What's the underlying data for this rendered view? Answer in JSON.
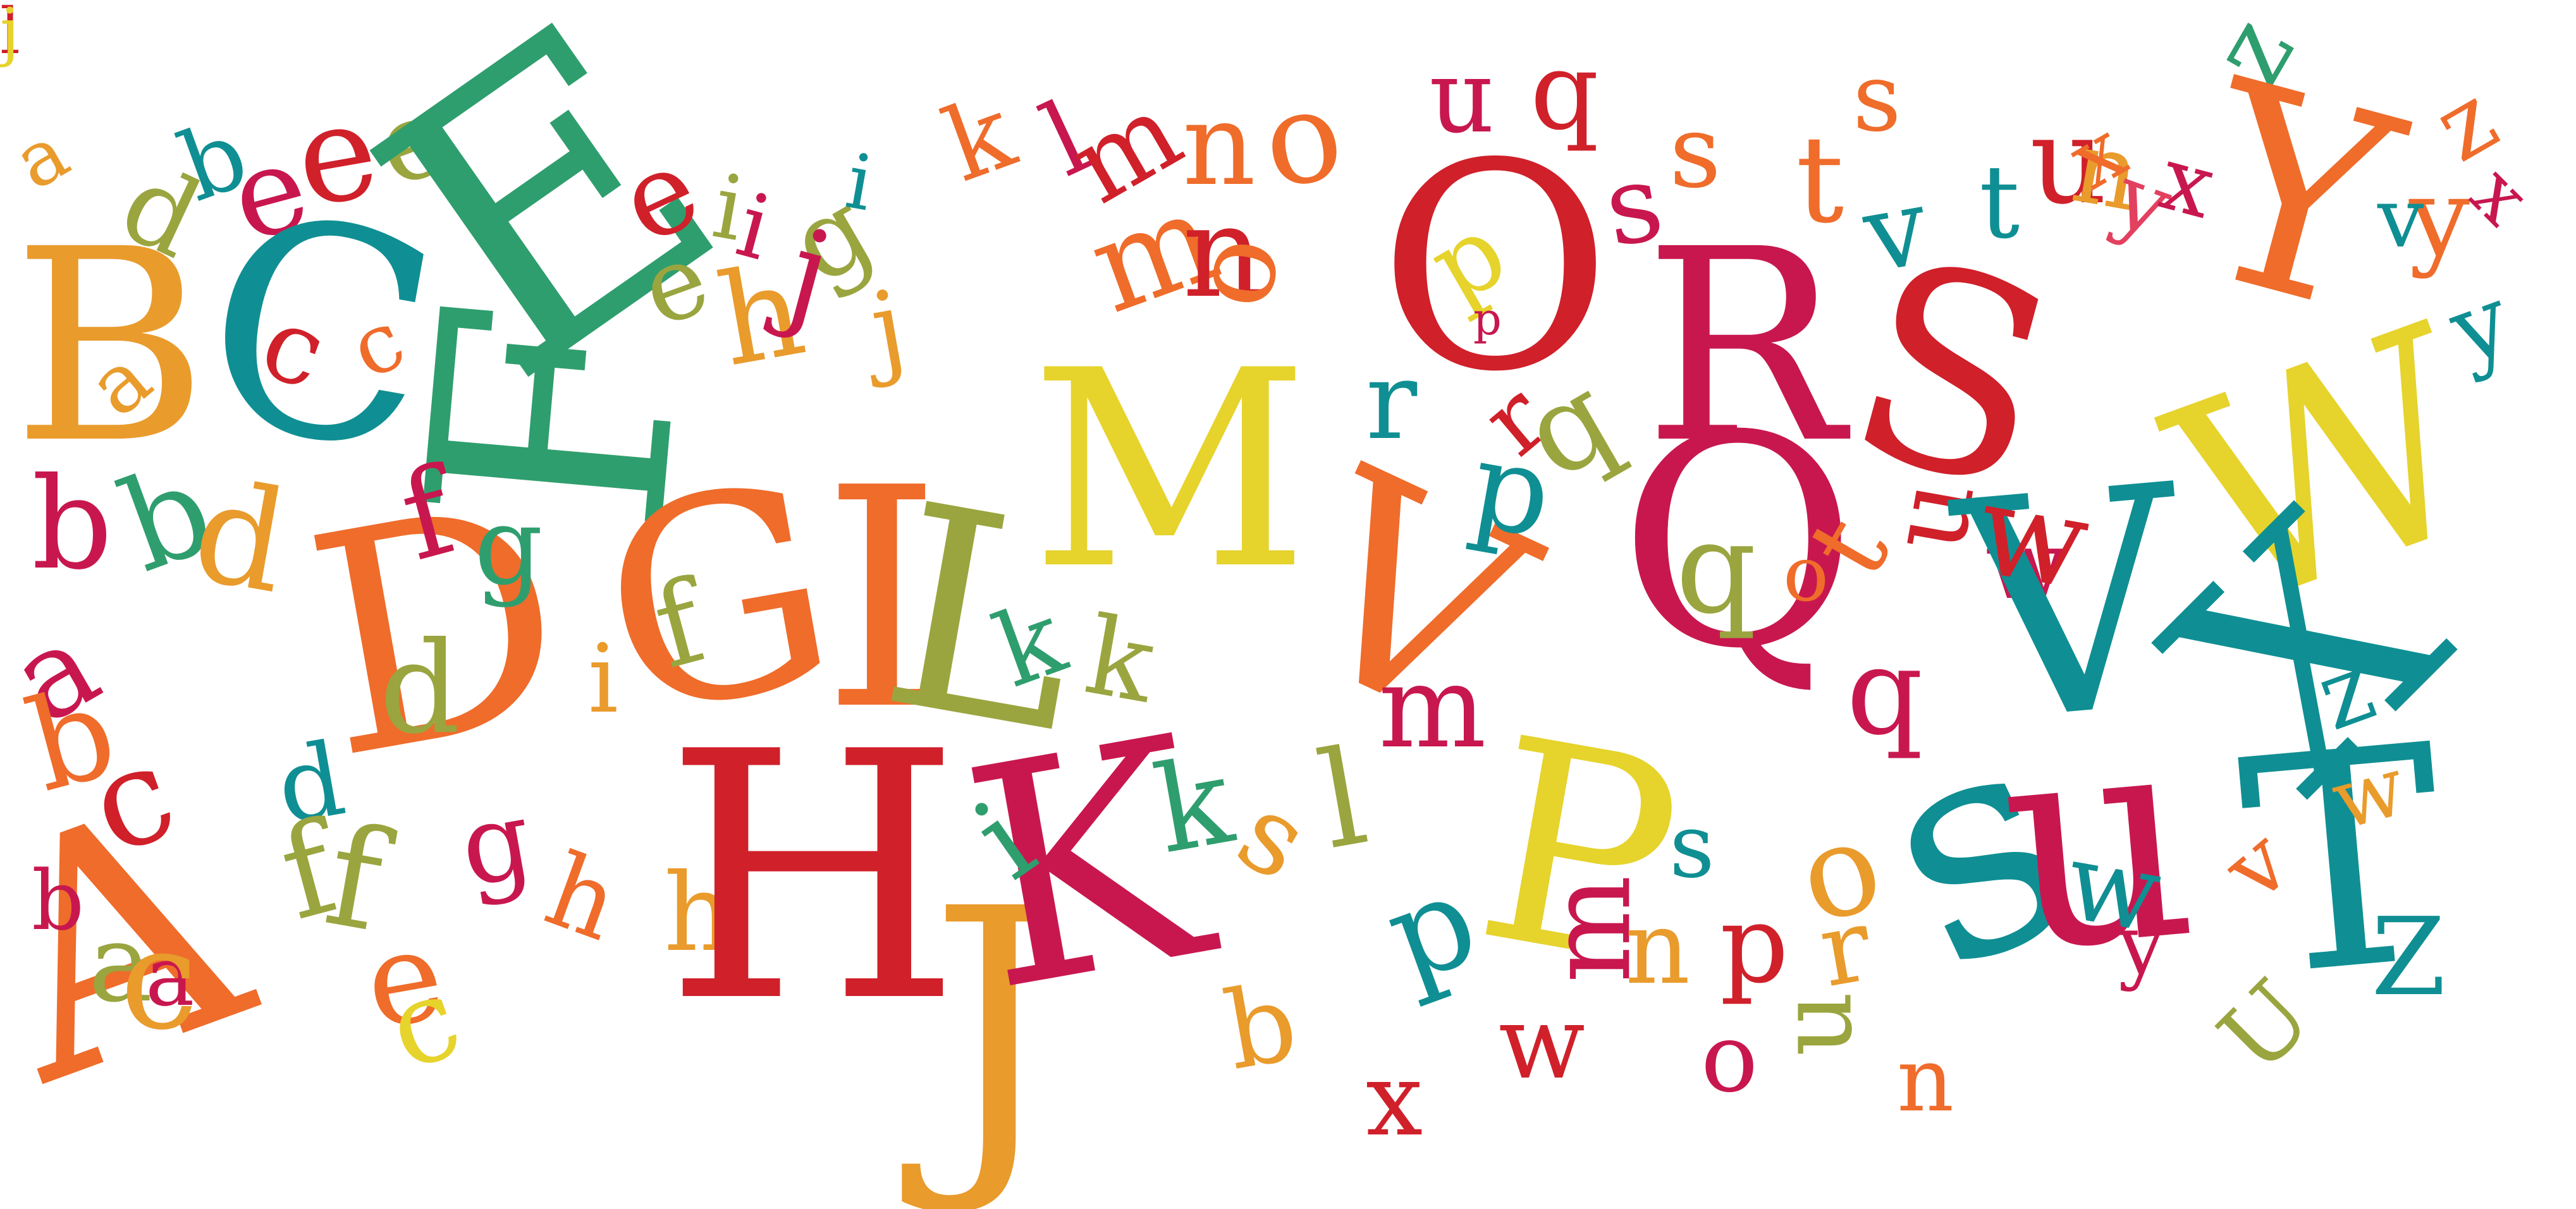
{
  "palette": {
    "red": "#d0202a",
    "crimson": "#c8174f",
    "orange": "#ef6c2b",
    "amber": "#e99b2c",
    "yellow": "#e6d32c",
    "olive": "#9aa53f",
    "green": "#2f9e6e",
    "teal": "#0f8f93",
    "pink": "#e3405f"
  },
  "letters": [
    {
      "ch": "a",
      "c": "amber"
    },
    {
      "ch": "b",
      "c": "teal"
    },
    {
      "ch": "d",
      "c": "olive"
    },
    {
      "ch": "e",
      "c": "crimson"
    },
    {
      "ch": "e",
      "c": "red"
    },
    {
      "ch": "e",
      "c": "olive"
    },
    {
      "ch": "E",
      "c": "green"
    },
    {
      "ch": "B",
      "c": "amber"
    },
    {
      "ch": "C",
      "c": "teal"
    },
    {
      "ch": "a",
      "c": "amber"
    },
    {
      "ch": "c",
      "c": "red"
    },
    {
      "ch": "c",
      "c": "orange"
    },
    {
      "ch": "F",
      "c": "green"
    },
    {
      "ch": "e",
      "c": "red"
    },
    {
      "ch": "i",
      "c": "olive"
    },
    {
      "ch": "e",
      "c": "olive"
    },
    {
      "ch": "i",
      "c": "crimson"
    },
    {
      "ch": "g",
      "c": "olive"
    },
    {
      "ch": "h",
      "c": "amber"
    },
    {
      "ch": "j",
      "c": "crimson"
    },
    {
      "ch": "j",
      "c": "amber"
    },
    {
      "ch": "i",
      "c": "teal"
    },
    {
      "ch": "k",
      "c": "orange"
    },
    {
      "ch": "l",
      "c": "crimson"
    },
    {
      "ch": "m",
      "c": "red"
    },
    {
      "ch": "n",
      "c": "orange"
    },
    {
      "ch": "o",
      "c": "orange"
    },
    {
      "ch": "n",
      "c": "crimson"
    },
    {
      "ch": "q",
      "c": "red"
    },
    {
      "ch": "m",
      "c": "orange"
    },
    {
      "ch": "n",
      "c": "red"
    },
    {
      "ch": "o",
      "c": "orange"
    },
    {
      "ch": "O",
      "c": "red"
    },
    {
      "ch": "p",
      "c": "yellow"
    },
    {
      "ch": "p",
      "c": "crimson"
    },
    {
      "ch": "s",
      "c": "orange"
    },
    {
      "ch": "s",
      "c": "crimson"
    },
    {
      "ch": "t",
      "c": "orange"
    },
    {
      "ch": "s",
      "c": "orange"
    },
    {
      "ch": "R",
      "c": "crimson"
    },
    {
      "ch": "S",
      "c": "red"
    },
    {
      "ch": "v",
      "c": "teal"
    },
    {
      "ch": "t",
      "c": "teal"
    },
    {
      "ch": "u",
      "c": "red"
    },
    {
      "ch": "n",
      "c": "amber"
    },
    {
      "ch": "x",
      "c": "orange"
    },
    {
      "ch": "y",
      "c": "pink"
    },
    {
      "ch": "x",
      "c": "crimson"
    },
    {
      "ch": "z",
      "c": "green"
    },
    {
      "ch": "Y",
      "c": "orange"
    },
    {
      "ch": "z",
      "c": "orange"
    },
    {
      "ch": "y",
      "c": "orange"
    },
    {
      "ch": "x",
      "c": "crimson"
    },
    {
      "ch": "y",
      "c": "teal"
    },
    {
      "ch": "W",
      "c": "yellow"
    },
    {
      "ch": "v",
      "c": "teal"
    },
    {
      "ch": "b",
      "c": "crimson"
    },
    {
      "ch": "b",
      "c": "green"
    },
    {
      "ch": "d",
      "c": "amber"
    },
    {
      "ch": "D",
      "c": "orange"
    },
    {
      "ch": "d",
      "c": "olive"
    },
    {
      "ch": "f",
      "c": "crimson"
    },
    {
      "ch": "g",
      "c": "green"
    },
    {
      "ch": "i",
      "c": "amber"
    },
    {
      "ch": "G",
      "c": "orange"
    },
    {
      "ch": "f",
      "c": "olive"
    },
    {
      "ch": "I",
      "c": "orange"
    },
    {
      "ch": "L",
      "c": "olive"
    },
    {
      "ch": "M",
      "c": "yellow"
    },
    {
      "ch": "k",
      "c": "green"
    },
    {
      "ch": "k",
      "c": "olive"
    },
    {
      "ch": "V",
      "c": "orange"
    },
    {
      "ch": "r",
      "c": "red"
    },
    {
      "ch": "q",
      "c": "olive"
    },
    {
      "ch": "r",
      "c": "teal"
    },
    {
      "ch": "p",
      "c": "teal"
    },
    {
      "ch": "Q",
      "c": "crimson"
    },
    {
      "ch": "q",
      "c": "olive"
    },
    {
      "ch": "o",
      "c": "orange"
    },
    {
      "ch": "t",
      "c": "orange"
    },
    {
      "ch": "u",
      "c": "red"
    },
    {
      "ch": "q",
      "c": "crimson"
    },
    {
      "ch": "w",
      "c": "crimson"
    },
    {
      "ch": "V",
      "c": "teal"
    },
    {
      "ch": "w",
      "c": "red"
    },
    {
      "ch": "X",
      "c": "teal"
    },
    {
      "ch": "z",
      "c": "teal"
    },
    {
      "ch": "a",
      "c": "crimson"
    },
    {
      "ch": "b",
      "c": "orange"
    },
    {
      "ch": "c",
      "c": "red"
    },
    {
      "ch": "A",
      "c": "orange"
    },
    {
      "ch": "a",
      "c": "olive"
    },
    {
      "ch": "a",
      "c": "crimson"
    },
    {
      "ch": "b",
      "c": "crimson"
    },
    {
      "ch": "d",
      "c": "teal"
    },
    {
      "ch": "f",
      "c": "olive"
    },
    {
      "ch": "c",
      "c": "amber"
    },
    {
      "ch": "e",
      "c": "orange"
    },
    {
      "ch": "f",
      "c": "olive"
    },
    {
      "ch": "c",
      "c": "yellow"
    },
    {
      "ch": "g",
      "c": "crimson"
    },
    {
      "ch": "h",
      "c": "orange"
    },
    {
      "ch": "h",
      "c": "amber"
    },
    {
      "ch": "H",
      "c": "red"
    },
    {
      "ch": "J",
      "c": "amber"
    },
    {
      "ch": "K",
      "c": "crimson"
    },
    {
      "ch": "i",
      "c": "green"
    },
    {
      "ch": "k",
      "c": "green"
    },
    {
      "ch": "l",
      "c": "olive"
    },
    {
      "ch": "m",
      "c": "crimson"
    },
    {
      "ch": "p",
      "c": "teal"
    },
    {
      "ch": "P",
      "c": "yellow"
    },
    {
      "ch": "s",
      "c": "teal"
    },
    {
      "ch": "m",
      "c": "crimson"
    },
    {
      "ch": "n",
      "c": "amber"
    },
    {
      "ch": "o",
      "c": "amber"
    },
    {
      "ch": "p",
      "c": "red"
    },
    {
      "ch": "r",
      "c": "amber"
    },
    {
      "ch": "u",
      "c": "olive"
    },
    {
      "ch": "s",
      "c": "teal"
    },
    {
      "ch": "u",
      "c": "crimson"
    },
    {
      "ch": "T",
      "c": "teal"
    },
    {
      "ch": "U",
      "c": "olive"
    },
    {
      "ch": "Z",
      "c": "teal"
    },
    {
      "ch": "w",
      "c": "amber"
    },
    {
      "ch": "y",
      "c": "crimson"
    },
    {
      "ch": "v",
      "c": "orange"
    },
    {
      "ch": "w",
      "c": "teal"
    },
    {
      "ch": "x",
      "c": "red"
    },
    {
      "ch": "w",
      "c": "red"
    },
    {
      "ch": "n",
      "c": "orange"
    },
    {
      "ch": "o",
      "c": "crimson"
    },
    {
      "ch": "b",
      "c": "amber"
    },
    {
      "ch": "s",
      "c": "amber"
    },
    {
      "ch": "l",
      "c": "red"
    },
    {
      "ch": "j",
      "c": "yellow"
    }
  ]
}
